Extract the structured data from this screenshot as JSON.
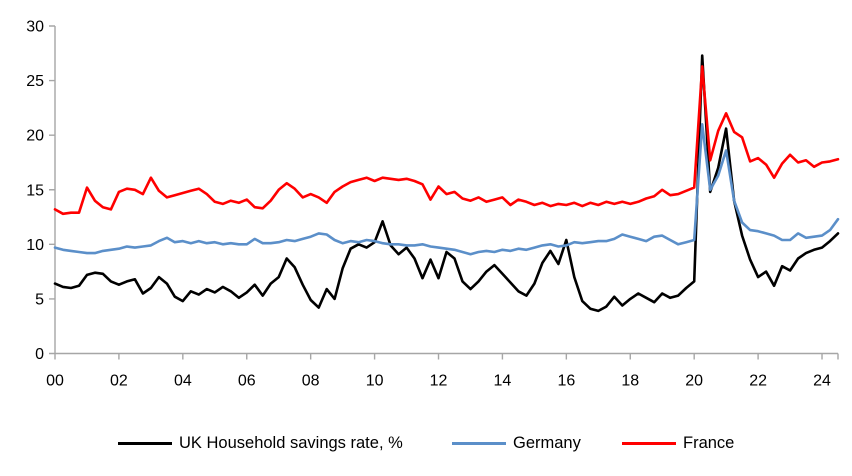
{
  "chart_data": {
    "type": "line",
    "title": "",
    "x_unit": "quarterly",
    "x_start": "2000Q1",
    "x_end": "2024Q3",
    "x_tick_labels": [
      "00",
      "02",
      "04",
      "06",
      "08",
      "10",
      "12",
      "14",
      "16",
      "18",
      "20",
      "22",
      "24"
    ],
    "x_ticks_every_n_points": 8,
    "y_ticks": [
      0,
      5,
      10,
      15,
      20,
      25,
      30
    ],
    "ylim": [
      0,
      30
    ],
    "grid": false,
    "legend_position": "bottom",
    "axis_color": "#a6a6a6",
    "label_color": "#000000",
    "series": [
      {
        "name": "UK Household savings rate, %",
        "color": "#000000",
        "values": [
          6.4,
          6.1,
          6.0,
          6.2,
          7.2,
          7.4,
          7.3,
          6.6,
          6.3,
          6.6,
          6.8,
          5.5,
          6.0,
          7.0,
          6.4,
          5.2,
          4.8,
          5.7,
          5.4,
          5.9,
          5.6,
          6.1,
          5.7,
          5.1,
          5.6,
          6.3,
          5.3,
          6.4,
          7.0,
          8.7,
          7.9,
          6.3,
          4.9,
          4.2,
          5.9,
          5.0,
          7.8,
          9.6,
          10.0,
          9.7,
          10.2,
          12.1,
          9.9,
          9.1,
          9.7,
          8.7,
          6.9,
          8.6,
          6.9,
          9.3,
          8.7,
          6.6,
          5.9,
          6.6,
          7.5,
          8.1,
          7.3,
          6.5,
          5.7,
          5.3,
          6.4,
          8.3,
          9.4,
          8.2,
          10.4,
          7.0,
          4.8,
          4.1,
          3.9,
          4.3,
          5.2,
          4.4,
          5.0,
          5.5,
          5.1,
          4.7,
          5.5,
          5.1,
          5.3,
          6.0,
          6.6,
          27.3,
          14.8,
          17.0,
          20.6,
          14.0,
          10.8,
          8.6,
          7.0,
          7.5,
          6.2,
          8.0,
          7.6,
          8.7,
          9.2,
          9.5,
          9.7,
          10.3,
          11.0
        ]
      },
      {
        "name": "Germany",
        "color": "#5b8fc9",
        "values": [
          9.7,
          9.5,
          9.4,
          9.3,
          9.2,
          9.2,
          9.4,
          9.5,
          9.6,
          9.8,
          9.7,
          9.8,
          9.9,
          10.3,
          10.6,
          10.2,
          10.3,
          10.1,
          10.3,
          10.1,
          10.2,
          10.0,
          10.1,
          10.0,
          10.0,
          10.5,
          10.1,
          10.1,
          10.2,
          10.4,
          10.3,
          10.5,
          10.7,
          11.0,
          10.9,
          10.4,
          10.1,
          10.3,
          10.2,
          10.4,
          10.3,
          10.1,
          10.0,
          10.0,
          9.9,
          9.9,
          10.0,
          9.8,
          9.7,
          9.6,
          9.5,
          9.3,
          9.1,
          9.3,
          9.4,
          9.3,
          9.5,
          9.4,
          9.6,
          9.5,
          9.7,
          9.9,
          10.0,
          9.8,
          9.9,
          10.2,
          10.1,
          10.2,
          10.3,
          10.3,
          10.5,
          10.9,
          10.7,
          10.5,
          10.3,
          10.7,
          10.8,
          10.4,
          10.0,
          10.2,
          10.4,
          21.0,
          15.0,
          16.3,
          18.6,
          14.0,
          12.0,
          11.3,
          11.2,
          11.0,
          10.8,
          10.4,
          10.4,
          11.0,
          10.6,
          10.7,
          10.8,
          11.3,
          12.3
        ]
      },
      {
        "name": "France",
        "color": "#ff0000",
        "values": [
          13.2,
          12.8,
          12.9,
          12.9,
          15.2,
          14.0,
          13.4,
          13.2,
          14.8,
          15.1,
          15.0,
          14.6,
          16.1,
          14.9,
          14.3,
          14.5,
          14.7,
          14.9,
          15.1,
          14.6,
          13.9,
          13.7,
          14.0,
          13.8,
          14.1,
          13.4,
          13.3,
          14.0,
          15.0,
          15.6,
          15.1,
          14.3,
          14.6,
          14.3,
          13.8,
          14.8,
          15.3,
          15.7,
          15.9,
          16.1,
          15.8,
          16.1,
          16.0,
          15.9,
          16.0,
          15.8,
          15.5,
          14.1,
          15.3,
          14.6,
          14.8,
          14.2,
          14.0,
          14.3,
          13.9,
          14.1,
          14.3,
          13.6,
          14.1,
          13.9,
          13.6,
          13.8,
          13.5,
          13.7,
          13.6,
          13.8,
          13.5,
          13.8,
          13.6,
          13.9,
          13.7,
          13.9,
          13.7,
          13.9,
          14.2,
          14.4,
          15.0,
          14.5,
          14.6,
          14.9,
          15.2,
          26.3,
          17.7,
          20.4,
          22.0,
          20.3,
          19.8,
          17.6,
          17.9,
          17.3,
          16.1,
          17.4,
          18.2,
          17.5,
          17.7,
          17.1,
          17.5,
          17.6,
          17.8
        ]
      }
    ]
  },
  "legend": {
    "items": [
      {
        "label": "UK Household savings rate, %"
      },
      {
        "label": "Germany"
      },
      {
        "label": "France"
      }
    ]
  }
}
